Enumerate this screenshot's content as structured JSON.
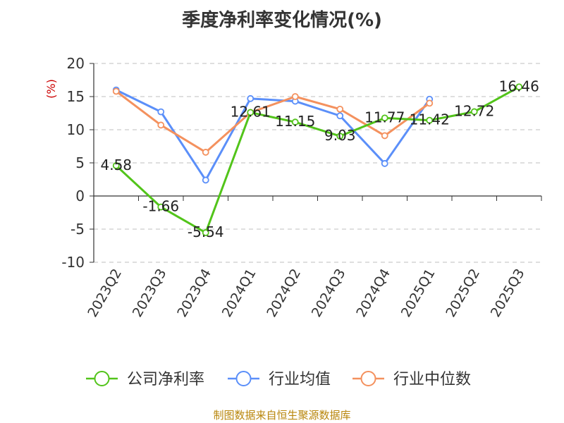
{
  "chart_data": {
    "type": "line",
    "title": "季度净利率变化情况(%)",
    "ylabel": "(%)",
    "xlabel": "",
    "categories": [
      "2023Q2",
      "2023Q3",
      "2023Q4",
      "2024Q1",
      "2024Q2",
      "2024Q3",
      "2024Q4",
      "2025Q1",
      "2025Q2",
      "2025Q3"
    ],
    "ylim": [
      -10,
      20
    ],
    "yticks": [
      20,
      15,
      10,
      5,
      0,
      -5,
      -10
    ],
    "grid": true,
    "legend_position": "bottom",
    "series": [
      {
        "name": "公司净利率",
        "color": "#52c41a",
        "values": [
          4.58,
          -1.66,
          -5.54,
          12.61,
          11.15,
          9.03,
          11.77,
          11.42,
          12.72,
          16.46
        ],
        "labels": [
          "4.58",
          "-1.66",
          "-5.54",
          "12.61",
          "11.15",
          "9.03",
          "11.77",
          "11.42",
          "12.72",
          "16.46"
        ]
      },
      {
        "name": "行业均值",
        "color": "#5b8ff9",
        "values": [
          16.0,
          12.7,
          2.4,
          14.7,
          14.3,
          12.1,
          4.9,
          14.6,
          null,
          null
        ]
      },
      {
        "name": "行业中位数",
        "color": "#f4915e",
        "values": [
          15.8,
          10.7,
          6.6,
          12.6,
          15.0,
          13.1,
          9.1,
          14.0,
          null,
          null
        ]
      }
    ]
  },
  "source": "制图数据来自恒生聚源数据库"
}
